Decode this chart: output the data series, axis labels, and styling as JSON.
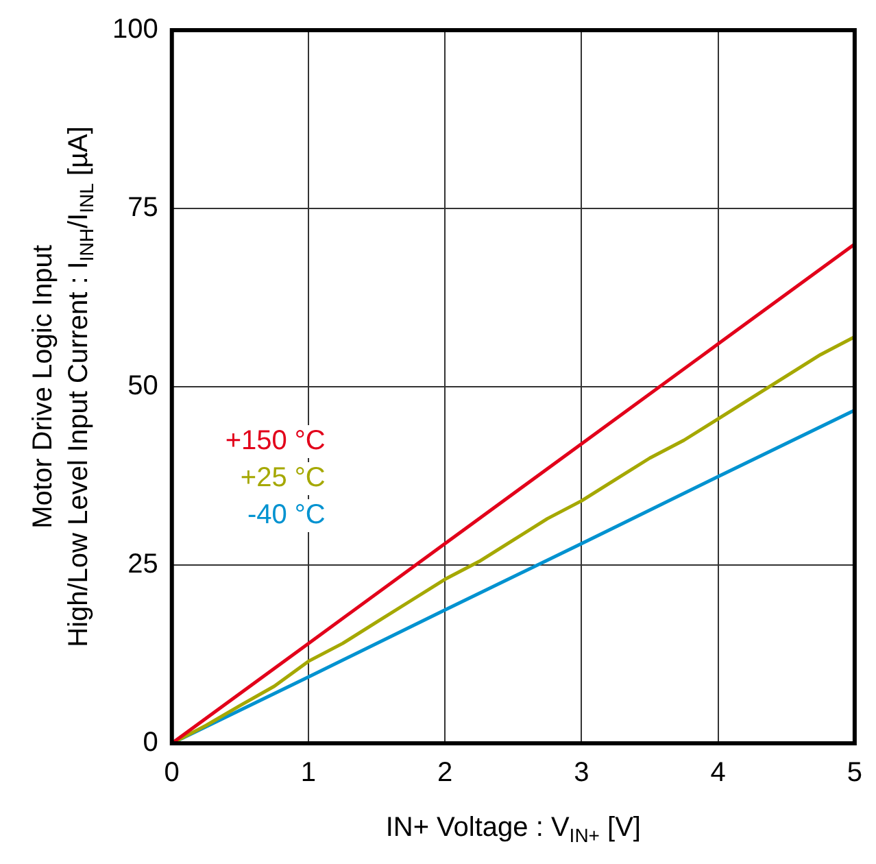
{
  "chart_data": {
    "type": "line",
    "xlabel": "IN+ Voltage : V$_{IN+}$ [V]",
    "ylabel": "Motor Drive Logic Input\nHigh/Low Level Input Current : I$_{INH}$/I$_{INL}$ [µA]",
    "x": [
      0,
      0.25,
      0.5,
      0.75,
      1,
      1.25,
      1.5,
      1.75,
      2,
      2.25,
      2.5,
      2.75,
      3,
      3.25,
      3.5,
      3.75,
      4,
      4.25,
      4.5,
      4.75,
      5
    ],
    "series": [
      {
        "name": "+150 °C",
        "color": "#e2001a",
        "x": [
          0,
          1,
          2,
          3,
          4,
          5
        ],
        "values": [
          0,
          14,
          28,
          42,
          56,
          70
        ]
      },
      {
        "name": "+25 °C",
        "color": "#a5a800",
        "values": [
          0,
          2.5,
          5.3,
          8,
          11.5,
          14,
          17,
          20,
          23,
          25.5,
          28.5,
          31.5,
          34,
          37,
          40,
          42.5,
          45.5,
          48.5,
          51.5,
          54.5,
          57
        ]
      },
      {
        "name": "-40 °C",
        "color": "#0092d0",
        "x": [
          0,
          1,
          2,
          3,
          4,
          5
        ],
        "values": [
          0,
          9.3,
          18.7,
          28,
          37.4,
          46.7
        ]
      }
    ],
    "xlim": [
      0,
      5
    ],
    "xticks": [
      0,
      1,
      2,
      3,
      4,
      5
    ],
    "ylim": [
      0,
      100
    ],
    "yticks": [
      0,
      25,
      50,
      75,
      100
    ],
    "grid": true,
    "legend": "left",
    "marker": "none",
    "line_style": "solid"
  }
}
